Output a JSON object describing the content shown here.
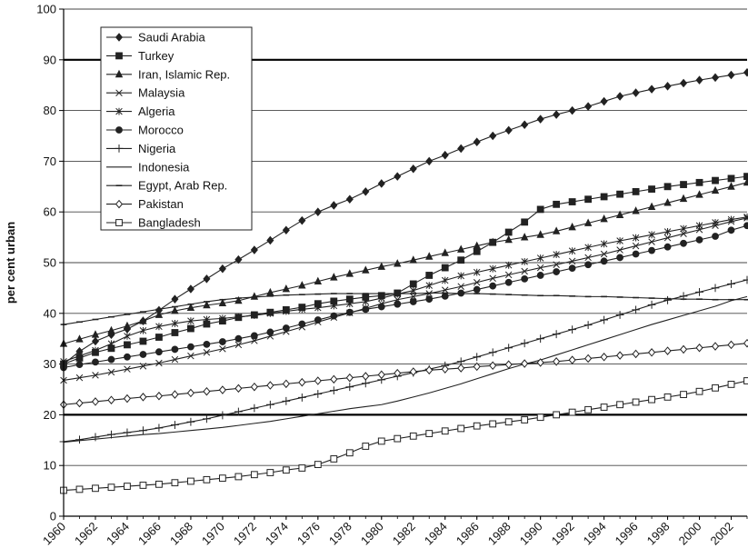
{
  "chart_data": {
    "type": "line",
    "title": "",
    "xlabel": "",
    "ylabel": "per cent urban",
    "xlim": [
      1960,
      2003
    ],
    "ylim": [
      0,
      100
    ],
    "yticks": [
      0,
      10,
      20,
      30,
      40,
      50,
      60,
      70,
      80,
      90,
      100
    ],
    "xtick_labels": [
      "1960",
      "1962",
      "1964",
      "1966",
      "1968",
      "1970",
      "1972",
      "1974",
      "1976",
      "1978",
      "1980",
      "1982",
      "1984",
      "1986",
      "1988",
      "1990",
      "1992",
      "1994",
      "1996",
      "1998",
      "2000",
      "2002"
    ],
    "bold_gridlines": [
      20,
      90
    ],
    "grid": true,
    "legend_position": "top-left",
    "x": [
      1960,
      1961,
      1962,
      1963,
      1964,
      1965,
      1966,
      1967,
      1968,
      1969,
      1970,
      1971,
      1972,
      1973,
      1974,
      1975,
      1976,
      1977,
      1978,
      1979,
      1980,
      1981,
      1982,
      1983,
      1984,
      1985,
      1986,
      1987,
      1988,
      1989,
      1990,
      1991,
      1992,
      1993,
      1994,
      1995,
      1996,
      1997,
      1998,
      1999,
      2000,
      2001,
      2002,
      2003
    ],
    "series": [
      {
        "name": "Saudi Arabia",
        "marker": "diamond-filled",
        "values": [
          30,
          32.5,
          34.5,
          35.8,
          36.9,
          38.5,
          40.6,
          42.8,
          44.8,
          46.8,
          48.8,
          50.6,
          52.5,
          54.4,
          56.4,
          58.3,
          60,
          61.3,
          62.5,
          64,
          65.6,
          67,
          68.5,
          70,
          71.2,
          72.5,
          73.8,
          75,
          76.1,
          77.2,
          78.3,
          79.2,
          80,
          80.8,
          81.8,
          82.8,
          83.5,
          84.2,
          84.8,
          85.4,
          86,
          86.5,
          87,
          87.5
        ]
      },
      {
        "name": "Turkey",
        "marker": "square-filled",
        "values": [
          30,
          31.2,
          32.3,
          33.1,
          33.8,
          34.5,
          35.3,
          36.2,
          37,
          37.9,
          38.5,
          39.2,
          39.7,
          40.2,
          40.7,
          41.2,
          41.9,
          42.4,
          42.8,
          43.2,
          43.5,
          44,
          45.8,
          47.5,
          49,
          50.5,
          52.2,
          54,
          56,
          58,
          60.5,
          61.5,
          62,
          62.5,
          63,
          63.5,
          64,
          64.5,
          65,
          65.4,
          65.8,
          66.2,
          66.6,
          67
        ]
      },
      {
        "name": "Iran, Islamic Rep.",
        "marker": "triangle-filled",
        "values": [
          34,
          34.9,
          35.8,
          36.6,
          37.5,
          38.5,
          39.7,
          40.5,
          41.1,
          41.6,
          42,
          42.5,
          43.3,
          44.1,
          44.8,
          45.5,
          46.3,
          47.1,
          47.8,
          48.5,
          49.2,
          49.8,
          50.5,
          51.2,
          51.9,
          52.6,
          53.3,
          54,
          54.5,
          55,
          55.5,
          56.2,
          57,
          57.8,
          58.6,
          59.4,
          60.2,
          61,
          61.8,
          62.6,
          63.4,
          64.2,
          65,
          65.8
        ]
      },
      {
        "name": "Malaysia",
        "marker": "x",
        "values": [
          26.8,
          27.3,
          27.8,
          28.4,
          29,
          29.6,
          30.2,
          30.9,
          31.6,
          32.3,
          33,
          33.8,
          34.6,
          35.5,
          36.4,
          37.3,
          38.3,
          39.2,
          40.1,
          41,
          41.9,
          42.7,
          43.3,
          43.9,
          44.6,
          45.3,
          46.1,
          46.9,
          47.6,
          48.3,
          49,
          49.6,
          50.3,
          51,
          51.7,
          52.5,
          53.3,
          54.1,
          54.9,
          55.7,
          56.5,
          57.3,
          58.1,
          58.8
        ]
      },
      {
        "name": "Algeria",
        "marker": "asterisk",
        "values": [
          30.5,
          31.6,
          32.7,
          34,
          35.5,
          36.6,
          37.4,
          38,
          38.5,
          38.8,
          39,
          39.3,
          39.6,
          40,
          40.4,
          40.8,
          41.1,
          41.5,
          41.9,
          42.3,
          43,
          43.8,
          44.5,
          45.5,
          46.5,
          47.4,
          48.1,
          48.8,
          49.5,
          50.2,
          50.9,
          51.6,
          52.3,
          53,
          53.7,
          54.3,
          54.9,
          55.5,
          56.1,
          56.7,
          57.3,
          57.9,
          58.5,
          59
        ]
      },
      {
        "name": "Morocco",
        "marker": "circle-filled",
        "values": [
          29.3,
          29.9,
          30.4,
          30.9,
          31.4,
          31.9,
          32.4,
          32.9,
          33.4,
          33.9,
          34.4,
          35,
          35.6,
          36.3,
          37.1,
          37.9,
          38.7,
          39.5,
          40.2,
          40.8,
          41.3,
          41.8,
          42.3,
          42.8,
          43.4,
          44,
          44.7,
          45.4,
          46.1,
          46.8,
          47.5,
          48.2,
          48.9,
          49.6,
          50.3,
          51,
          51.7,
          52.4,
          53.1,
          53.8,
          54.5,
          55.2,
          56.4,
          57.3
        ]
      },
      {
        "name": "Nigeria",
        "marker": "plus",
        "values": [
          14.7,
          15.1,
          15.6,
          16.1,
          16.5,
          16.9,
          17.4,
          18,
          18.6,
          19.2,
          19.9,
          20.6,
          21.3,
          22,
          22.7,
          23.4,
          24.1,
          24.8,
          25.5,
          26.2,
          26.9,
          27.6,
          28.3,
          29,
          29.7,
          30.5,
          31.4,
          32.3,
          33.2,
          34.1,
          35,
          35.9,
          36.8,
          37.7,
          38.7,
          39.7,
          40.7,
          41.7,
          42.6,
          43.4,
          44.2,
          45,
          45.8,
          46.6
        ]
      },
      {
        "name": "Indonesia",
        "marker": "none",
        "values": [
          14.6,
          14.9,
          15.2,
          15.5,
          15.8,
          16.1,
          16.3,
          16.6,
          16.9,
          17.2,
          17.5,
          17.9,
          18.3,
          18.7,
          19.2,
          19.7,
          20.2,
          20.7,
          21.2,
          21.6,
          22,
          22.7,
          23.5,
          24.3,
          25.2,
          26.1,
          27.1,
          28.1,
          29.1,
          30,
          30.8,
          31.8,
          32.8,
          33.8,
          34.8,
          35.8,
          36.8,
          37.8,
          38.7,
          39.6,
          40.5,
          41.4,
          42.5,
          43.3
        ]
      },
      {
        "name": "Egypt, Arab Rep.",
        "marker": "dash",
        "values": [
          37.8,
          38.3,
          38.8,
          39.3,
          39.8,
          40.3,
          40.8,
          41.3,
          41.8,
          42.3,
          42.7,
          43,
          43.2,
          43.4,
          43.6,
          43.7,
          43.8,
          43.9,
          43.9,
          43.9,
          43.9,
          43.9,
          43.9,
          44,
          44,
          43.9,
          43.9,
          43.8,
          43.7,
          43.6,
          43.5,
          43.5,
          43.4,
          43.3,
          43.3,
          43.2,
          43.1,
          43,
          42.9,
          42.8,
          42.8,
          42.7,
          42.7,
          42.7
        ]
      },
      {
        "name": "Pakistan",
        "marker": "diamond-open",
        "values": [
          22,
          22.3,
          22.6,
          22.9,
          23.2,
          23.5,
          23.7,
          24,
          24.3,
          24.6,
          24.9,
          25.2,
          25.5,
          25.8,
          26.1,
          26.4,
          26.7,
          27,
          27.3,
          27.6,
          27.9,
          28.2,
          28.5,
          28.8,
          29,
          29.2,
          29.5,
          29.7,
          29.9,
          30.1,
          30.3,
          30.5,
          30.8,
          31.1,
          31.4,
          31.7,
          32,
          32.3,
          32.6,
          32.9,
          33.2,
          33.5,
          33.8,
          34.1
        ]
      },
      {
        "name": "Bangladesh",
        "marker": "square-open",
        "values": [
          5.1,
          5.3,
          5.5,
          5.7,
          5.9,
          6.1,
          6.3,
          6.6,
          6.9,
          7.2,
          7.5,
          7.8,
          8.2,
          8.6,
          9.1,
          9.5,
          10.2,
          11.3,
          12.5,
          13.8,
          14.8,
          15.3,
          15.8,
          16.3,
          16.8,
          17.3,
          17.8,
          18.2,
          18.6,
          19,
          19.5,
          20,
          20.5,
          21,
          21.5,
          22,
          22.5,
          23,
          23.5,
          24,
          24.6,
          25.3,
          26,
          26.7
        ]
      }
    ]
  }
}
